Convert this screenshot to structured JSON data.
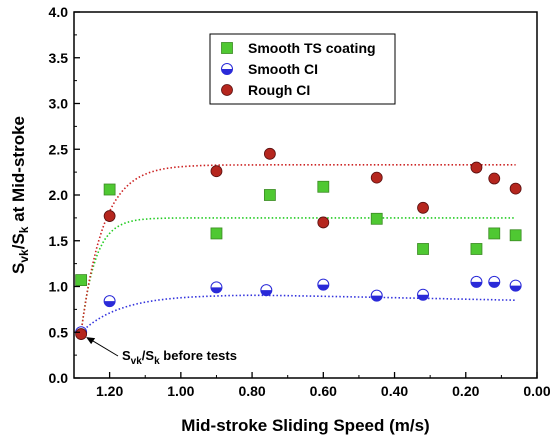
{
  "chart_data": {
    "type": "scatter",
    "xlabel": "Mid-stroke Sliding Speed (m/s)",
    "ylabel": {
      "main": "S",
      "sub1": "vk",
      "mid": "/S",
      "sub2": "k",
      "rest": " at Mid-stroke"
    },
    "xlim": [
      1.3,
      0.0
    ],
    "ylim": [
      0.0,
      4.0
    ],
    "x_reversed": true,
    "x_ticks": [
      1.2,
      1.0,
      0.8,
      0.6,
      0.4,
      0.2,
      0.0
    ],
    "x_tick_labels": [
      "1.20",
      "1.00",
      "0.80",
      "0.60",
      "0.40",
      "0.20",
      "0.00"
    ],
    "y_ticks": [
      0.0,
      0.5,
      1.0,
      1.5,
      2.0,
      2.5,
      3.0,
      3.5,
      4.0
    ],
    "y_tick_labels": [
      "0.0",
      "0.5",
      "1.0",
      "1.5",
      "2.0",
      "2.5",
      "3.0",
      "3.5",
      "4.0"
    ],
    "legend_position": "top-center",
    "series": [
      {
        "name": "Smooth TS coating",
        "marker": "square",
        "color": "#4fc832",
        "fit_color": "#22cc22",
        "x": [
          1.28,
          1.2,
          0.9,
          0.75,
          0.6,
          0.45,
          0.32,
          0.17,
          0.12,
          0.06
        ],
        "y": [
          1.07,
          2.06,
          1.58,
          2.0,
          2.09,
          1.74,
          1.41,
          1.41,
          1.58,
          1.56
        ],
        "fit": {
          "base": 0.5,
          "plateau": 1.75,
          "x0": 1.28,
          "k": 25
        }
      },
      {
        "name": "Smooth CI",
        "marker": "half-circle",
        "color": "#2a2ad8",
        "fit_color": "#3333dd",
        "x": [
          1.28,
          1.2,
          0.9,
          0.76,
          0.6,
          0.45,
          0.32,
          0.17,
          0.12,
          0.06
        ],
        "y": [
          0.5,
          0.84,
          0.99,
          0.96,
          1.02,
          0.9,
          0.91,
          1.05,
          1.05,
          1.01
        ],
        "fit": {
          "base": 0.5,
          "plateau": 0.91,
          "x0": 1.28,
          "k": 9,
          "drop": 0.06
        }
      },
      {
        "name": "Rough CI",
        "marker": "circle",
        "color": "#b5261e",
        "fit_color": "#cc2222",
        "x": [
          1.28,
          1.2,
          0.9,
          0.75,
          0.6,
          0.45,
          0.32,
          0.17,
          0.12,
          0.06
        ],
        "y": [
          0.48,
          1.77,
          2.26,
          2.45,
          1.7,
          2.19,
          1.86,
          2.3,
          2.18,
          2.07
        ],
        "fit": {
          "base": 0.5,
          "plateau": 2.33,
          "x0": 1.28,
          "k": 16
        }
      }
    ],
    "annotation": {
      "main": "S",
      "sub1": "vk",
      "mid": "/S",
      "sub2": "k",
      "rest": " before tests",
      "x": 1.28,
      "y": 0.48
    }
  }
}
